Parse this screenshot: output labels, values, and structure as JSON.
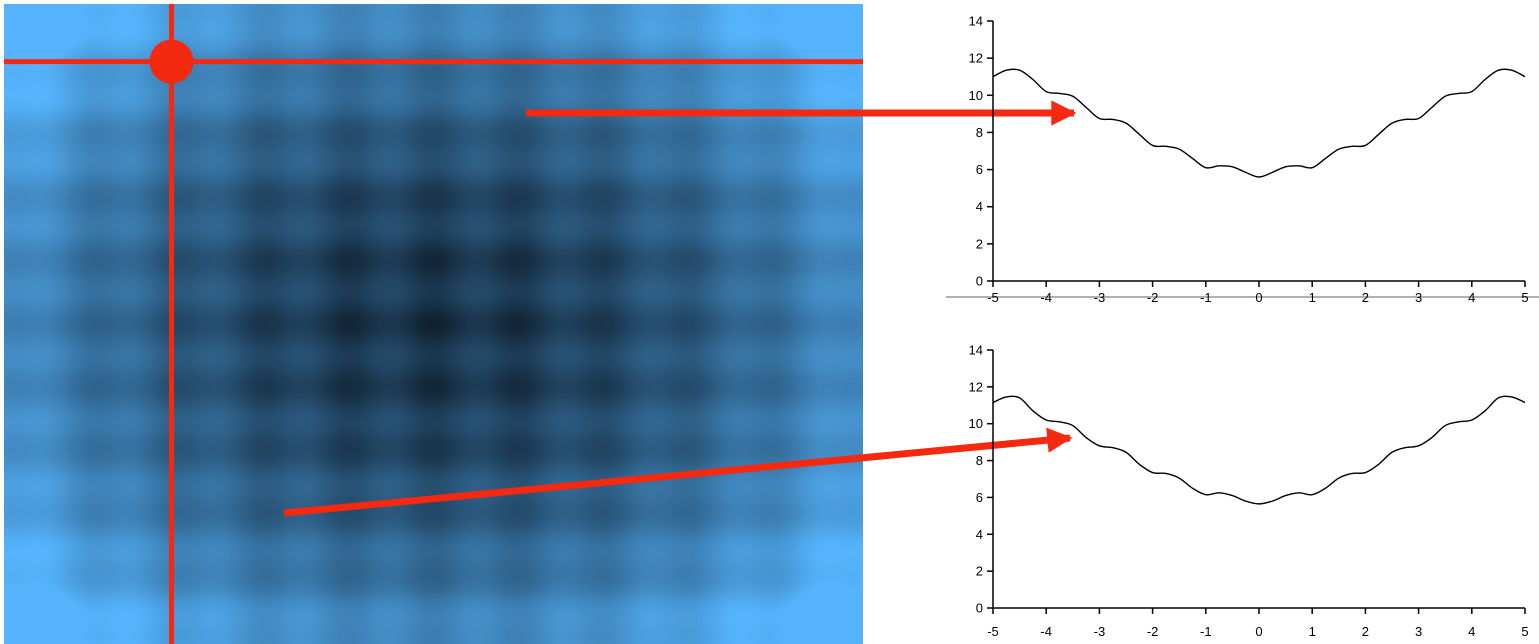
{
  "chart_data": [
    {
      "type": "heatmap",
      "description_colors": {
        "low": "#10202f",
        "high": "#55b3fb"
      },
      "crosshair": {
        "x": -3.05,
        "y": -4.1
      },
      "x": [
        -5,
        5
      ],
      "y": [
        -5,
        5
      ]
    },
    {
      "type": "line",
      "xlim": [
        -5,
        5
      ],
      "ylim": [
        0,
        14
      ],
      "xticks": [
        "-5",
        "-4",
        "-3",
        "-2",
        "-1",
        "0",
        "1",
        "2",
        "3",
        "4",
        "5"
      ],
      "yticks": [
        "0",
        "2",
        "4",
        "6",
        "8",
        "10",
        "12",
        "14"
      ],
      "series": [
        {
          "x": [
            -5,
            -4.75,
            -4.5,
            -4.25,
            -4,
            -3.75,
            -3.5,
            -3.25,
            -3,
            -2.75,
            -2.5,
            -2.25,
            -2,
            -1.75,
            -1.5,
            -1.25,
            -1,
            -0.75,
            -0.5,
            -0.25,
            0,
            0.25,
            0.5,
            0.75,
            1,
            1.25,
            1.5,
            1.75,
            2,
            2.25,
            2.5,
            2.75,
            3,
            3.25,
            3.5,
            3.75,
            4,
            4.25,
            4.5,
            4.75,
            5
          ],
          "values": [
            11.0,
            11.35,
            11.35,
            10.85,
            10.2,
            10.1,
            9.95,
            9.35,
            8.75,
            8.7,
            8.5,
            7.9,
            7.3,
            7.25,
            7.1,
            6.6,
            6.1,
            6.2,
            6.15,
            5.85,
            5.6,
            5.85,
            6.15,
            6.2,
            6.1,
            6.6,
            7.1,
            7.25,
            7.3,
            7.9,
            8.5,
            8.7,
            8.75,
            9.35,
            9.95,
            10.1,
            10.2,
            10.85,
            11.35,
            11.35,
            11.0
          ]
        }
      ]
    },
    {
      "type": "line",
      "xlim": [
        -5,
        5
      ],
      "ylim": [
        0,
        14
      ],
      "xticks": [
        "-5",
        "-4",
        "-3",
        "-2",
        "-1",
        "0",
        "1",
        "2",
        "3",
        "4",
        "5"
      ],
      "yticks": [
        "0",
        "2",
        "4",
        "6",
        "8",
        "10",
        "12",
        "14"
      ],
      "series": [
        {
          "x": [
            -5,
            -4.75,
            -4.5,
            -4.25,
            -4,
            -3.75,
            -3.5,
            -3.25,
            -3,
            -2.75,
            -2.5,
            -2.25,
            -2,
            -1.75,
            -1.5,
            -1.25,
            -1,
            -0.75,
            -0.5,
            -0.25,
            0,
            0.25,
            0.5,
            0.75,
            1,
            1.25,
            1.5,
            1.75,
            2,
            2.25,
            2.5,
            2.75,
            3,
            3.25,
            3.5,
            3.75,
            4,
            4.25,
            4.5,
            4.75,
            5
          ],
          "values": [
            11.15,
            11.45,
            11.4,
            10.7,
            10.2,
            10.1,
            9.9,
            9.25,
            8.8,
            8.7,
            8.45,
            7.8,
            7.35,
            7.3,
            7.05,
            6.5,
            6.15,
            6.25,
            6.1,
            5.8,
            5.65,
            5.8,
            6.1,
            6.25,
            6.15,
            6.5,
            7.05,
            7.3,
            7.35,
            7.8,
            8.45,
            8.7,
            8.8,
            9.25,
            9.9,
            10.1,
            10.2,
            10.7,
            11.4,
            11.45,
            11.15
          ]
        }
      ]
    }
  ],
  "colors": {
    "annotation": "#f32a10",
    "axis": "#000000",
    "line": "#000000",
    "divider": "#b0b0b0"
  }
}
